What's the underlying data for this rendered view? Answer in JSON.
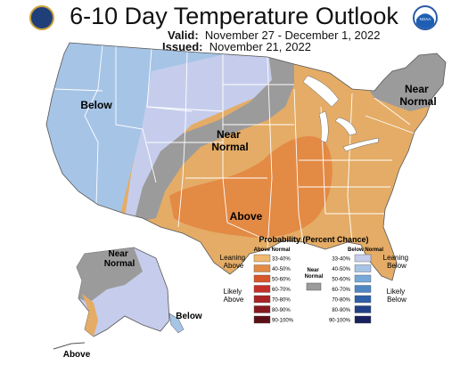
{
  "header": {
    "title": "6-10 Day Temperature Outlook",
    "valid_label": "Valid:",
    "valid_value": "November 27 - December 1, 2022",
    "issued_label": "Issued:",
    "issued_value": "November 21, 2022",
    "logo_left": "department-of-commerce-seal",
    "logo_right": "noaa-logo",
    "logo_right_text": "NOAA"
  },
  "map": {
    "region_labels": {
      "below_west": "Below",
      "near_normal_central": "Near\nNormal",
      "near_normal_northeast": "Near\nNormal",
      "above_south": "Above",
      "near_normal_alaska": "Near\nNormal",
      "below_alaska": "Below",
      "above_alaska": "Above"
    }
  },
  "legend": {
    "title": "Probability (Percent Chance)",
    "above_header": "Above Normal",
    "below_header": "Below Normal",
    "leaning_above": "Leaning\nAbove",
    "likely_above": "Likely\nAbove",
    "leaning_below": "Leaning\nBelow",
    "likely_below": "Likely\nBelow",
    "near_normal": "Near\nNormal",
    "above_bins": [
      {
        "label": "33-40%",
        "color": "#f0b870"
      },
      {
        "label": "40-50%",
        "color": "#e38a45"
      },
      {
        "label": "50-60%",
        "color": "#d7562a"
      },
      {
        "label": "60-70%",
        "color": "#c3302a"
      },
      {
        "label": "70-80%",
        "color": "#a82424"
      },
      {
        "label": "80-90%",
        "color": "#85191e"
      },
      {
        "label": "90-100%",
        "color": "#5c0f14"
      }
    ],
    "below_bins": [
      {
        "label": "33-40%",
        "color": "#c6cdec"
      },
      {
        "label": "40-50%",
        "color": "#a6c4e6"
      },
      {
        "label": "50-60%",
        "color": "#76a9d8"
      },
      {
        "label": "60-70%",
        "color": "#4f86c4"
      },
      {
        "label": "70-80%",
        "color": "#2f5fa6"
      },
      {
        "label": "80-90%",
        "color": "#233f86"
      },
      {
        "label": "90-100%",
        "color": "#1b215e"
      }
    ],
    "near_color": "#9b9b9b"
  },
  "colors": {
    "state_border": "#ffffff",
    "land_outline": "#444444",
    "water": "#ffffff"
  }
}
